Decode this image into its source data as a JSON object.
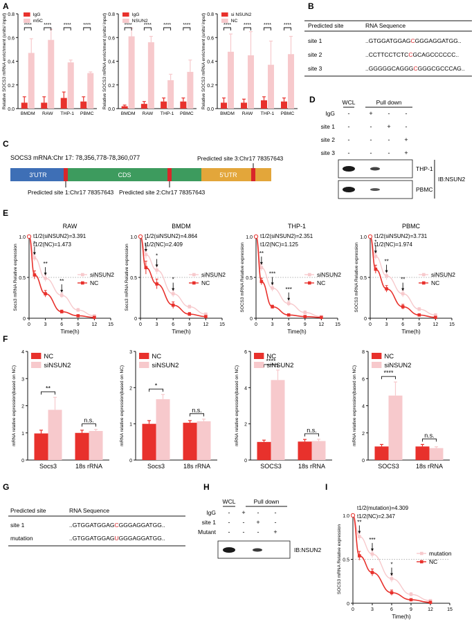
{
  "panel_labels": [
    "A",
    "B",
    "C",
    "D",
    "E",
    "F",
    "G",
    "H",
    "I"
  ],
  "colors": {
    "red": "#e8312c",
    "pink": "#f7c9cc",
    "black": "#111111",
    "grey": "#9a9a9a",
    "utr3": "#3e6fb6",
    "cds": "#3d9b5e",
    "utr5": "#e3a63a",
    "site": "#d9262a",
    "white": "#ffffff"
  },
  "chart_data": [
    {
      "id": "A1",
      "type": "bar",
      "categories": [
        "BMDM",
        "RAW",
        "THP-1",
        "PBMC"
      ],
      "series": [
        {
          "name": "IgG",
          "values": [
            0.05,
            0.05,
            0.09,
            0.06
          ],
          "errors": [
            0.05,
            0.05,
            0.05,
            0.04
          ]
        },
        {
          "name": "m5C",
          "values": [
            0.47,
            0.58,
            0.39,
            0.3
          ],
          "errors": [
            0.12,
            0.09,
            0.02,
            0.01
          ]
        }
      ],
      "ylabel": "Relative SOCS3 mRNA enrichment (units/ input)",
      "ylim": [
        0,
        0.8
      ],
      "yticks": [
        "0.0",
        "0.2",
        "0.4",
        "0.6",
        "0.8"
      ],
      "sig": [
        "****",
        "****",
        "****",
        "****"
      ]
    },
    {
      "id": "A2",
      "type": "bar",
      "categories": [
        "BMDM",
        "RAW",
        "THP-1",
        "PBMC"
      ],
      "series": [
        {
          "name": "IgG",
          "values": [
            0.02,
            0.04,
            0.06,
            0.06
          ],
          "errors": [
            0.01,
            0.02,
            0.03,
            0.03
          ]
        },
        {
          "name": "NSUN2",
          "values": [
            0.61,
            0.56,
            0.24,
            0.31
          ],
          "errors": [
            0.07,
            0.05,
            0.05,
            0.1
          ]
        }
      ],
      "ylabel": "Relative SOCS3 mRNA enrichment (units/ input)",
      "ylim": [
        0,
        0.8
      ],
      "yticks": [
        "0.0",
        "0.2",
        "0.4",
        "0.6",
        "0.8"
      ],
      "sig": [
        "****",
        "****",
        "****",
        "****"
      ]
    },
    {
      "id": "A3",
      "type": "bar",
      "categories": [
        "BMDM",
        "RAW",
        "THP-1",
        "PBMC"
      ],
      "series": [
        {
          "name": "si NSUN2",
          "values": [
            0.05,
            0.05,
            0.07,
            0.06
          ],
          "errors": [
            0.04,
            0.03,
            0.03,
            0.03
          ]
        },
        {
          "name": "NC",
          "values": [
            0.48,
            0.45,
            0.37,
            0.46
          ],
          "errors": [
            0.15,
            0.2,
            0.2,
            0.15
          ]
        }
      ],
      "ylabel": "Relative SOCS3 mRNA enrichment (units/ input)",
      "ylim": [
        0,
        0.8
      ],
      "yticks": [
        "0.0",
        "0.2",
        "0.4",
        "0.6",
        "0.8"
      ],
      "sig": [
        "****",
        "****",
        "****",
        "****"
      ]
    },
    {
      "id": "E1",
      "type": "line",
      "title": "RAW",
      "ylabel": "Socs3 mRNA Relative expression",
      "xlabel": "Time(h)",
      "xlim": [
        0,
        15
      ],
      "ylim": [
        0,
        1
      ],
      "xticks": [
        "0",
        "3",
        "6",
        "9",
        "12",
        "15"
      ],
      "yticks": [
        "0",
        "0.5",
        "1.0"
      ],
      "t_si": "t1/2(siNSUN2)=3.391",
      "t_nc": "t1/2(NC)=1.473",
      "x": [
        0,
        1,
        3,
        6,
        9,
        12
      ],
      "series": [
        {
          "name": "siNSUN2",
          "values": [
            1.0,
            0.74,
            0.49,
            0.28,
            0.1,
            0.03
          ],
          "errors": [
            0,
            0.04,
            0.04,
            0.03,
            0.02,
            0.01
          ]
        },
        {
          "name": "NC",
          "values": [
            1.0,
            0.53,
            0.3,
            0.08,
            0.03,
            0.01
          ],
          "errors": [
            0,
            0.05,
            0.04,
            0.02,
            0.01,
            0.01
          ]
        }
      ],
      "stars": [
        {
          "x": 1,
          "s": "*"
        },
        {
          "x": 3,
          "s": "**"
        },
        {
          "x": 6,
          "s": "**"
        }
      ]
    },
    {
      "id": "E2",
      "type": "line",
      "title": "BMDM",
      "ylabel": "Socs3 mRNA Relative expression",
      "xlabel": "Time(h)",
      "xlim": [
        0,
        15
      ],
      "ylim": [
        0,
        1
      ],
      "xticks": [
        "0",
        "3",
        "6",
        "9",
        "12",
        "15"
      ],
      "yticks": [
        "0",
        "0.5",
        "1.0"
      ],
      "t_si": "t1/2(siNSUN2)=4.864",
      "t_nc": "t1/2(NC)=2.409",
      "x": [
        0,
        1,
        3,
        6,
        9,
        12
      ],
      "series": [
        {
          "name": "siNSUN2",
          "values": [
            1.0,
            0.78,
            0.59,
            0.3,
            0.14,
            0.05
          ],
          "errors": [
            0,
            0.05,
            0.05,
            0.04,
            0.02,
            0.01
          ]
        },
        {
          "name": "NC",
          "values": [
            1.0,
            0.62,
            0.42,
            0.16,
            0.05,
            0.02
          ],
          "errors": [
            0,
            0.08,
            0.06,
            0.04,
            0.02,
            0.01
          ]
        }
      ],
      "stars": [
        {
          "x": 1,
          "s": "*"
        },
        {
          "x": 3,
          "s": "*"
        },
        {
          "x": 6,
          "s": "*"
        }
      ]
    },
    {
      "id": "E3",
      "type": "line",
      "title": "THP-1",
      "ylabel": "SOCS3 mRNA Relative expression",
      "xlabel": "Time(h)",
      "xlim": [
        0,
        15
      ],
      "ylim": [
        0,
        1
      ],
      "xticks": [
        "0",
        "3",
        "6",
        "9",
        "12",
        "15"
      ],
      "yticks": [
        "0",
        "0.5",
        "1.0"
      ],
      "t_si": "t1/2(siNSUN2)=2.351",
      "t_nc": "t1/2(NC)=1.125",
      "x": [
        0,
        1,
        3,
        6,
        9,
        12
      ],
      "series": [
        {
          "name": "siNSUN2",
          "values": [
            1.0,
            0.62,
            0.37,
            0.18,
            0.07,
            0.02
          ],
          "errors": [
            0,
            0.04,
            0.04,
            0.03,
            0.02,
            0.01
          ]
        },
        {
          "name": "NC",
          "values": [
            1.0,
            0.45,
            0.14,
            0.04,
            0.02,
            0.01
          ],
          "errors": [
            0,
            0.04,
            0.02,
            0.01,
            0.01,
            0.01
          ]
        }
      ],
      "stars": [
        {
          "x": 1,
          "s": "**"
        },
        {
          "x": 3,
          "s": "***"
        },
        {
          "x": 6,
          "s": "***"
        }
      ]
    },
    {
      "id": "E4",
      "type": "line",
      "title": "PBMC",
      "ylabel": "SOCS3 mRNA Relative expression",
      "xlabel": "Time(h)",
      "xlim": [
        0,
        15
      ],
      "ylim": [
        0,
        1
      ],
      "xticks": [
        "0",
        "3",
        "6",
        "9",
        "12",
        "15"
      ],
      "yticks": [
        "0",
        "0.5",
        "1.0"
      ],
      "t_si": "t1/2(siNSUN2)=3.731",
      "t_nc": "t1/2(NC)=1.974",
      "x": [
        0,
        1,
        3,
        6,
        9,
        12
      ],
      "series": [
        {
          "name": "siNSUN2",
          "values": [
            1.0,
            0.76,
            0.52,
            0.3,
            0.11,
            0.04
          ],
          "errors": [
            0,
            0.04,
            0.05,
            0.04,
            0.02,
            0.01
          ]
        },
        {
          "name": "NC",
          "values": [
            1.0,
            0.6,
            0.36,
            0.14,
            0.04,
            0.01
          ],
          "errors": [
            0,
            0.05,
            0.04,
            0.03,
            0.01,
            0.01
          ]
        }
      ],
      "stars": [
        {
          "x": 1,
          "s": "*"
        },
        {
          "x": 3,
          "s": "**"
        },
        {
          "x": 6,
          "s": "**"
        }
      ]
    },
    {
      "id": "F1",
      "type": "bar",
      "categories": [
        "Socs3",
        "18s rRNA"
      ],
      "series": [
        {
          "name": "NC",
          "values": [
            0.98,
            1.0
          ],
          "errors": [
            0.12,
            0.1
          ]
        },
        {
          "name": "siNSUN2",
          "values": [
            1.85,
            1.07
          ],
          "errors": [
            0.46,
            0.06
          ]
        }
      ],
      "ylabel": "mRNA relative expression(based on NC)",
      "ylim": [
        0,
        4
      ],
      "yticks": [
        "0",
        "1",
        "2",
        "3",
        "4"
      ],
      "sig": [
        "**",
        "n.s."
      ]
    },
    {
      "id": "F2",
      "type": "bar",
      "categories": [
        "Socs3",
        "18s rRNA"
      ],
      "series": [
        {
          "name": "NC",
          "values": [
            1.0,
            1.03
          ],
          "errors": [
            0.09,
            0.06
          ]
        },
        {
          "name": "siNSUN2",
          "values": [
            1.68,
            1.07
          ],
          "errors": [
            0.13,
            0.06
          ]
        }
      ],
      "ylabel": "mRNA relative expression(based on NC)",
      "ylim": [
        0,
        3
      ],
      "yticks": [
        "0",
        "1",
        "2",
        "3"
      ],
      "sig": [
        "*",
        "n.s."
      ]
    },
    {
      "id": "F3",
      "type": "bar",
      "categories": [
        "SOCS3",
        "18s rRNA"
      ],
      "series": [
        {
          "name": "NC",
          "values": [
            1.0,
            1.02
          ],
          "errors": [
            0.1,
            0.12
          ]
        },
        {
          "name": "siNSUN2",
          "values": [
            4.42,
            1.05
          ],
          "errors": [
            0.55,
            0.1
          ]
        }
      ],
      "ylabel": "mRNA relative expression(based on NC)",
      "ylim": [
        0,
        6
      ],
      "yticks": [
        "0",
        "2",
        "4",
        "6"
      ],
      "sig": [
        "****",
        "n.s."
      ]
    },
    {
      "id": "F4",
      "type": "bar",
      "categories": [
        "SOCS3",
        "18s rRNA"
      ],
      "series": [
        {
          "name": "NC",
          "values": [
            1.0,
            1.0
          ],
          "errors": [
            0.15,
            0.15
          ]
        },
        {
          "name": "siNSUN2",
          "values": [
            4.75,
            0.88
          ],
          "errors": [
            1.0,
            0.1
          ]
        }
      ],
      "ylabel": "mRNA relative expression(based on NC)",
      "ylim": [
        0,
        8
      ],
      "yticks": [
        "0",
        "2",
        "4",
        "6",
        "8"
      ],
      "sig": [
        "****",
        "n.s."
      ]
    },
    {
      "id": "I",
      "type": "line",
      "title": "",
      "ylabel": "SOCS3 mRNA Relative expression",
      "xlabel": "Time(h)",
      "xlim": [
        0,
        15
      ],
      "ylim": [
        0,
        1
      ],
      "xticks": [
        "0",
        "3",
        "6",
        "9",
        "12",
        "15"
      ],
      "yticks": [
        "0",
        "0.5",
        "1.0"
      ],
      "t_si": "t1/2(mutation)=4.309",
      "t_nc": "t1/2(NC)=2.347",
      "x": [
        0,
        1,
        3,
        6,
        9,
        12
      ],
      "series": [
        {
          "name": "mutation",
          "values": [
            1.0,
            0.76,
            0.56,
            0.28,
            0.1,
            0.03
          ],
          "errors": [
            0,
            0.04,
            0.04,
            0.04,
            0.02,
            0.01
          ]
        },
        {
          "name": "NC",
          "values": [
            1.0,
            0.54,
            0.35,
            0.12,
            0.04,
            0.01
          ],
          "errors": [
            0,
            0.05,
            0.04,
            0.03,
            0.01,
            0.01
          ]
        }
      ],
      "stars": [
        {
          "x": 1,
          "s": "**"
        },
        {
          "x": 3,
          "s": "***"
        },
        {
          "x": 6,
          "s": "*"
        }
      ]
    }
  ],
  "panel_B": {
    "headers": [
      "Predicted site",
      "RNA Sequence"
    ],
    "rows": [
      {
        "site": "site 1",
        "pre": "..GTGGATGGAG",
        "mid": "C",
        "post": "GGGAGGATGG.."
      },
      {
        "site": "site 2",
        "pre": "..CCTTCCTCTC",
        "mid": "C",
        "post": "GCAGCCCCCC.."
      },
      {
        "site": "site 3",
        "pre": "..GGGGGCAGGG",
        "mid": "C",
        "post": "GGGCGCCCAG.."
      }
    ]
  },
  "panel_C": {
    "title": "SOCS3 mRNA:Chr 17: 78,356,778-78,360,077",
    "utr3": "3'UTR",
    "cds": "CDS",
    "utr5": "5'UTR",
    "site1": "Predicted site 1:Chr17 78357643",
    "site2": "Predicted site 2:Chr17 78357643",
    "site3": "Predicted site 3:Chr17 78357643"
  },
  "panel_D": {
    "wcl": "WCL",
    "pulldown": "Pull down",
    "rows": [
      {
        "label": "IgG",
        "marks": [
          "-",
          "+",
          "-",
          "-"
        ]
      },
      {
        "label": "site 1",
        "marks": [
          "-",
          "-",
          "+",
          "-"
        ]
      },
      {
        "label": "site 2",
        "marks": [
          "-",
          "-",
          "-",
          "+"
        ]
      },
      {
        "label": "site 3",
        "marks": [
          "-",
          "-",
          "-",
          "+"
        ]
      }
    ],
    "blots": [
      "THP-1",
      "PBMC"
    ],
    "ib": "IB:NSUN2"
  },
  "panel_G": {
    "headers": [
      "Predicted site",
      "RNA Sequence"
    ],
    "rows": [
      {
        "site": "site 1",
        "pre": "..GTGGATGGAG",
        "mid": "C",
        "post": "GGGAGGATGG.."
      },
      {
        "site": "mutation",
        "pre": "..GTGGATGGAG",
        "mid": "U",
        "post": "GGGAGGATGG.."
      }
    ]
  },
  "panel_H": {
    "wcl": "WCL",
    "pulldown": "Pull down",
    "rows": [
      {
        "label": "IgG",
        "marks": [
          "-",
          "+",
          "-",
          "-"
        ]
      },
      {
        "label": "site 1",
        "marks": [
          "-",
          "-",
          "+",
          "-"
        ]
      },
      {
        "label": "Mutant",
        "marks": [
          "-",
          "-",
          "-",
          "+"
        ]
      }
    ],
    "ib": "IB:NSUN2"
  }
}
